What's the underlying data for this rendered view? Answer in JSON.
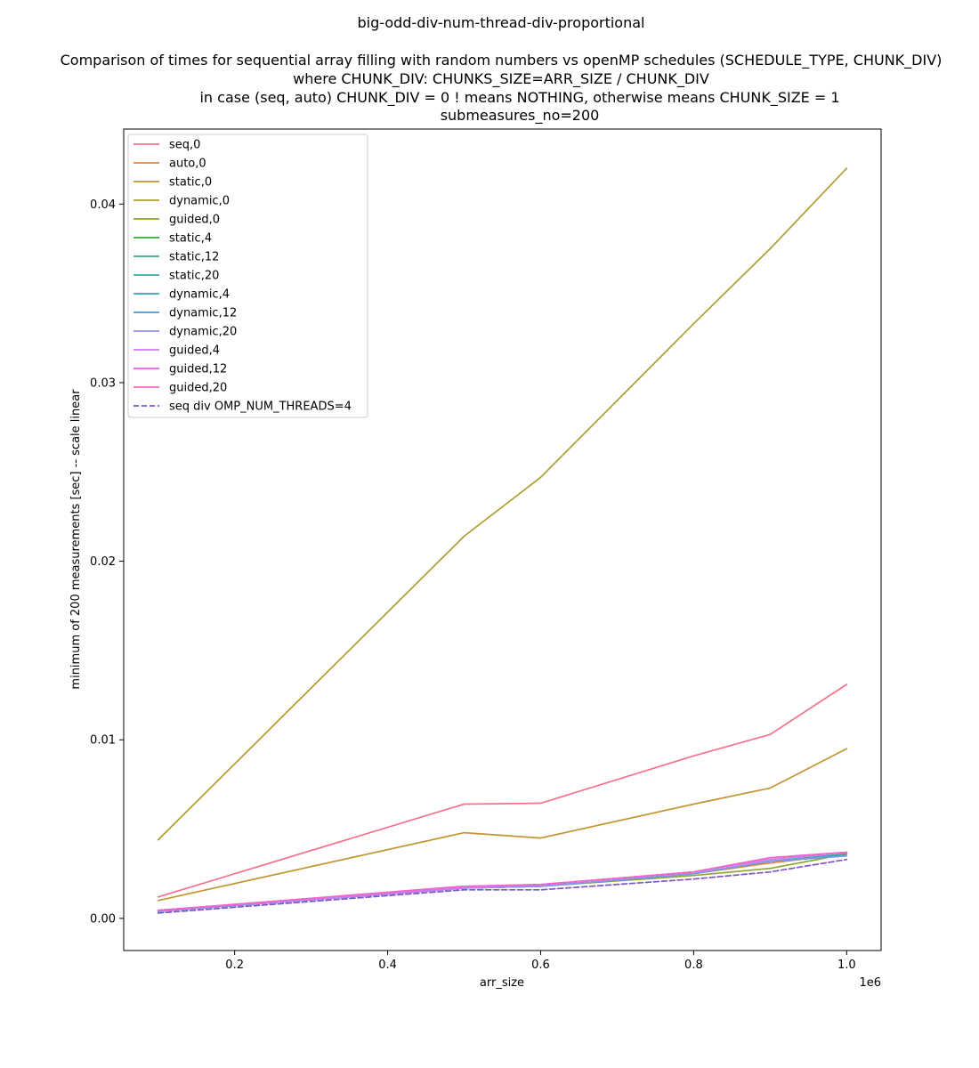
{
  "chart_data": {
    "type": "line",
    "title": "big-odd-div-num-thread-div-proportional",
    "subtitle_lines": [
      "Comparison of times for sequential array filling with random numbers vs openMP schedules (SCHEDULE_TYPE, CHUNK_DIV)",
      "where CHUNK_DIV: CHUNKS_SIZE=ARR_SIZE / CHUNK_DIV",
      "in case (seq, auto) CHUNK_DIV = 0 ! means NOTHING, otherwise means CHUNK_SIZE = 1",
      "submeasures_no=200"
    ],
    "xlabel": "arr_size",
    "ylabel": "minimum of 200 measurements  [sec] -- scale linear",
    "x_offset_text": "1e6",
    "xlim": [
      0.055,
      1.045
    ],
    "ylim": [
      -0.0018,
      0.0442
    ],
    "x_ticks": [
      0.2,
      0.4,
      0.6,
      0.8,
      1.0
    ],
    "x_tick_labels": [
      "0.2",
      "0.4",
      "0.6",
      "0.8",
      "1.0"
    ],
    "y_ticks": [
      0.0,
      0.01,
      0.02,
      0.03,
      0.04
    ],
    "y_tick_labels": [
      "0.00",
      "0.01",
      "0.02",
      "0.03",
      "0.04"
    ],
    "legend_position": "top-left",
    "x": [
      0.1,
      0.5,
      0.6,
      0.8,
      0.9,
      1.0
    ],
    "series": [
      {
        "name": "seq,0",
        "color": "#f77189",
        "dash": false,
        "values": [
          0.0012,
          0.0064,
          0.00645,
          0.0091,
          0.0103,
          0.0131
        ]
      },
      {
        "name": "auto,0",
        "color": "#e98132",
        "dash": false,
        "values": [
          0.00045,
          0.0017,
          0.0018,
          0.0025,
          0.0031,
          0.0036
        ]
      },
      {
        "name": "static,0",
        "color": "#c39532",
        "dash": false,
        "values": [
          0.001,
          0.0048,
          0.0045,
          0.0064,
          0.0073,
          0.0095
        ]
      },
      {
        "name": "dynamic,0",
        "color": "#ae9d31",
        "dash": false,
        "values": [
          0.0044,
          0.0214,
          0.0247,
          0.0333,
          0.0375,
          0.042
        ]
      },
      {
        "name": "guided,0",
        "color": "#8ea531",
        "dash": false,
        "values": [
          0.0004,
          0.0017,
          0.0018,
          0.0024,
          0.0028,
          0.0036
        ]
      },
      {
        "name": "static,4",
        "color": "#33b039",
        "dash": false,
        "values": [
          0.0004,
          0.0017,
          0.0018,
          0.0025,
          0.0032,
          0.0036
        ]
      },
      {
        "name": "static,12",
        "color": "#36ad8a",
        "dash": false,
        "values": [
          0.0004,
          0.0017,
          0.0018,
          0.0025,
          0.0032,
          0.0036
        ]
      },
      {
        "name": "static,20",
        "color": "#38aaa5",
        "dash": false,
        "values": [
          0.0004,
          0.0017,
          0.0018,
          0.0025,
          0.0032,
          0.0036
        ]
      },
      {
        "name": "dynamic,4",
        "color": "#3ba3ba",
        "dash": false,
        "values": [
          0.0004,
          0.0017,
          0.0018,
          0.0025,
          0.0032,
          0.0035
        ]
      },
      {
        "name": "dynamic,12",
        "color": "#3e9dd9",
        "dash": false,
        "values": [
          0.0004,
          0.0017,
          0.0018,
          0.0025,
          0.0032,
          0.0035
        ]
      },
      {
        "name": "dynamic,20",
        "color": "#8b94ed",
        "dash": false,
        "values": [
          0.0004,
          0.0017,
          0.0018,
          0.0025,
          0.0032,
          0.0035
        ]
      },
      {
        "name": "guided,4",
        "color": "#cc7af4",
        "dash": false,
        "values": [
          0.00045,
          0.0017,
          0.0019,
          0.0026,
          0.0033,
          0.0037
        ]
      },
      {
        "name": "guided,12",
        "color": "#ec5fe7",
        "dash": false,
        "values": [
          0.00045,
          0.0018,
          0.0019,
          0.0026,
          0.0034,
          0.0037
        ]
      },
      {
        "name": "guided,20",
        "color": "#f565c6",
        "dash": false,
        "values": [
          0.00045,
          0.0018,
          0.0019,
          0.0026,
          0.0034,
          0.0037
        ]
      },
      {
        "name": "seq div OMP_NUM_THREADS=4",
        "color": "#7e57c2",
        "dash": true,
        "values": [
          0.0003,
          0.0016,
          0.0016,
          0.0022,
          0.0026,
          0.0033
        ]
      }
    ]
  }
}
